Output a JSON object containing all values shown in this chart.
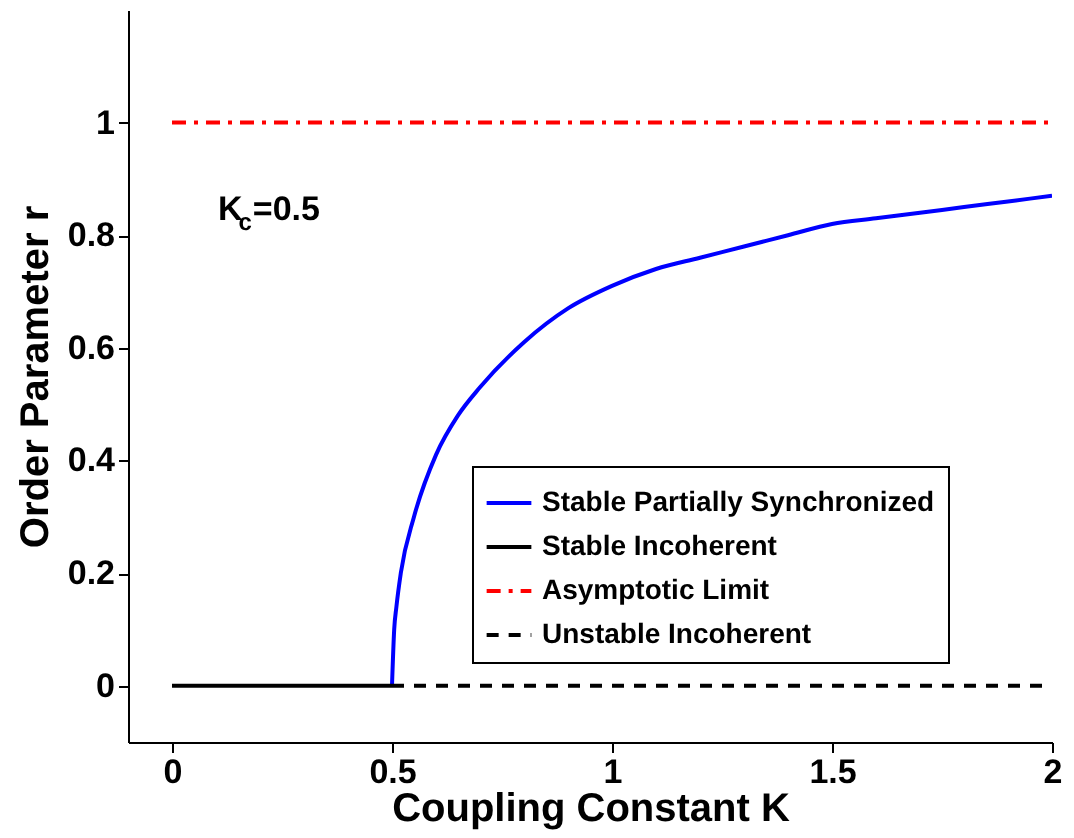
{
  "chart_data": {
    "type": "line",
    "xlabel": "Coupling Constant K",
    "ylabel": "Order Parameter r",
    "xlim": [
      -0.1,
      2
    ],
    "xticks": [
      0,
      0.5,
      1,
      1.5,
      2
    ],
    "ylim": [
      -0.1,
      1.2
    ],
    "yticks": [
      0,
      0.2,
      0.4,
      0.6,
      0.8,
      1
    ],
    "grid": false,
    "legend": "bottom right",
    "marker": "none",
    "annotations": [
      "K$_{c}$=0.5"
    ],
    "series": [
      {
        "name": "Stable Partially Synchronized",
        "color": "#0000ff",
        "line_style": "solid",
        "x": [
          0.5,
          0.505,
          0.51,
          0.52,
          0.55,
          0.6,
          0.65,
          0.7,
          0.8,
          0.9,
          1.0,
          1.1,
          1.2,
          1.3,
          1.4,
          1.5,
          1.6,
          1.7,
          1.8,
          1.9,
          2.0
        ],
        "values": [
          0,
          0.1,
          0.14,
          0.2,
          0.3,
          0.41,
          0.48,
          0.53,
          0.61,
          0.67,
          0.71,
          0.74,
          0.76,
          0.78,
          0.8,
          0.82,
          0.83,
          0.84,
          0.85,
          0.86,
          0.87
        ]
      },
      {
        "name": "Stable Incoherent",
        "color": "#000000",
        "line_style": "solid",
        "x": [
          0,
          0.5
        ],
        "values": [
          0,
          0
        ]
      },
      {
        "name": "Asymptotic Limit",
        "color": "#ff0000",
        "line_style": "dashdot",
        "x": [
          0,
          2
        ],
        "values": [
          1,
          1
        ]
      },
      {
        "name": "Unstable Incoherent",
        "color": "#000000",
        "line_style": "dashed",
        "x": [
          0.5,
          2
        ],
        "values": [
          0,
          0
        ]
      }
    ]
  }
}
